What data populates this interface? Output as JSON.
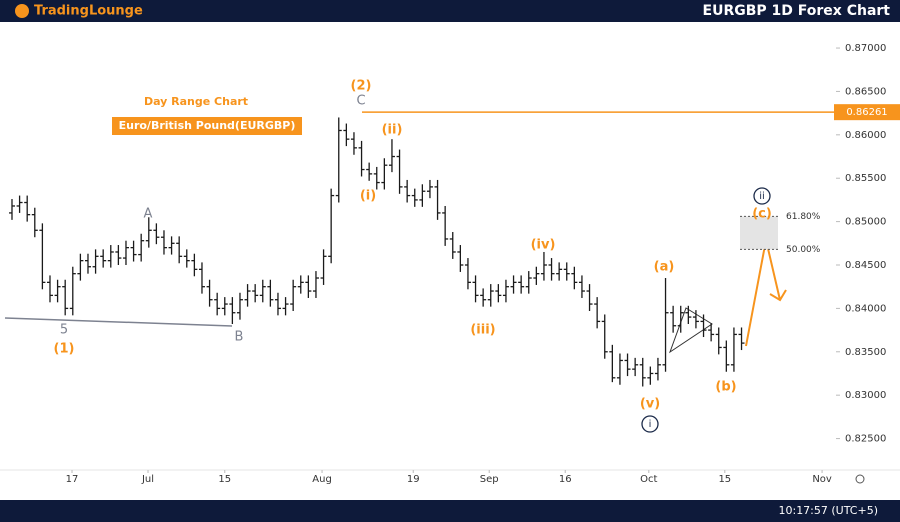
{
  "header": {
    "logo": "TradingLounge",
    "title": "EURGBP 1D Forex Chart"
  },
  "footer": {
    "time": "10:17:57 (UTC+5)"
  },
  "chart_data": {
    "type": "ohlc",
    "subtitle": "Day Range Chart",
    "instrument": "Euro/British Pound(EURGBP)",
    "color": "#1a1a1a",
    "accent": "#f7941d",
    "ylim": [
      0.8223,
      0.873
    ],
    "yticks": [
      {
        "value": 0.825,
        "label": "0.82500"
      },
      {
        "value": 0.83,
        "label": "0.83000"
      },
      {
        "value": 0.835,
        "label": "0.83500"
      },
      {
        "value": 0.84,
        "label": "0.84000"
      },
      {
        "value": 0.845,
        "label": "0.84500"
      },
      {
        "value": 0.85,
        "label": "0.85000"
      },
      {
        "value": 0.855,
        "label": "0.85500"
      },
      {
        "value": 0.86,
        "label": "0.86000"
      },
      {
        "value": 0.865,
        "label": "0.86500"
      },
      {
        "value": 0.87,
        "label": "0.87000"
      }
    ],
    "xlim": [
      -0.92,
      108.3
    ],
    "xticks": [
      {
        "value": 7.9,
        "label": "17"
      },
      {
        "value": 17.9,
        "label": "Jul"
      },
      {
        "value": 28,
        "label": "15"
      },
      {
        "value": 40.8,
        "label": "Aug"
      },
      {
        "value": 52.8,
        "label": "19"
      },
      {
        "value": 62.8,
        "label": "Sep"
      },
      {
        "value": 72.8,
        "label": "16"
      },
      {
        "value": 83.8,
        "label": "Oct"
      },
      {
        "value": 93.8,
        "label": "15"
      },
      {
        "value": 106.6,
        "label": "Nov"
      }
    ],
    "open": [
      0.851,
      0.8518,
      0.8522,
      0.8508,
      0.849,
      0.843,
      0.8415,
      0.8425,
      0.84,
      0.844,
      0.8455,
      0.8448,
      0.846,
      0.8455,
      0.8465,
      0.8458,
      0.847,
      0.8462,
      0.8478,
      0.849,
      0.8482,
      0.847,
      0.8475,
      0.846,
      0.8455,
      0.8445,
      0.8425,
      0.841,
      0.84,
      0.8405,
      0.8395,
      0.841,
      0.842,
      0.8415,
      0.8425,
      0.841,
      0.84,
      0.8405,
      0.8425,
      0.843,
      0.842,
      0.8435,
      0.846,
      0.853,
      0.8605,
      0.8595,
      0.8585,
      0.856,
      0.8555,
      0.8545,
      0.8565,
      0.8575,
      0.854,
      0.853,
      0.8525,
      0.8535,
      0.854,
      0.851,
      0.848,
      0.8465,
      0.845,
      0.843,
      0.8415,
      0.841,
      0.842,
      0.8415,
      0.8425,
      0.843,
      0.8425,
      0.8435,
      0.844,
      0.845,
      0.844,
      0.8445,
      0.844,
      0.843,
      0.842,
      0.8405,
      0.8385,
      0.835,
      0.832,
      0.834,
      0.833,
      0.8335,
      0.832,
      0.8325,
      0.8335,
      0.8395,
      0.838,
      0.8395,
      0.839,
      0.8385,
      0.8375,
      0.837,
      0.8355,
      0.8335,
      0.837
    ],
    "high": [
      0.8526,
      0.853,
      0.853,
      0.8516,
      0.8498,
      0.8438,
      0.8433,
      0.8433,
      0.8448,
      0.8463,
      0.8463,
      0.8468,
      0.8468,
      0.8473,
      0.8473,
      0.8478,
      0.8478,
      0.8486,
      0.8505,
      0.8498,
      0.849,
      0.8483,
      0.8483,
      0.8468,
      0.8463,
      0.8453,
      0.8433,
      0.8418,
      0.8413,
      0.8413,
      0.8418,
      0.8428,
      0.8428,
      0.8433,
      0.8433,
      0.8418,
      0.8413,
      0.8433,
      0.8438,
      0.8438,
      0.8443,
      0.8468,
      0.8538,
      0.862,
      0.8613,
      0.8603,
      0.8593,
      0.8568,
      0.8563,
      0.8573,
      0.8595,
      0.8583,
      0.8548,
      0.8538,
      0.8543,
      0.8548,
      0.8548,
      0.8518,
      0.8488,
      0.8473,
      0.8458,
      0.8438,
      0.8423,
      0.8428,
      0.8428,
      0.8433,
      0.8438,
      0.8438,
      0.8443,
      0.8448,
      0.8465,
      0.8458,
      0.8453,
      0.8453,
      0.8448,
      0.8438,
      0.8428,
      0.8413,
      0.8393,
      0.8358,
      0.8348,
      0.8348,
      0.8343,
      0.8343,
      0.8333,
      0.8343,
      0.8435,
      0.8403,
      0.8403,
      0.8403,
      0.8398,
      0.8393,
      0.8383,
      0.8378,
      0.8363,
      0.8378,
      0.8378
    ],
    "low": [
      0.8502,
      0.851,
      0.85,
      0.8482,
      0.8422,
      0.8407,
      0.8407,
      0.8392,
      0.8392,
      0.8432,
      0.844,
      0.844,
      0.8447,
      0.8447,
      0.845,
      0.845,
      0.8454,
      0.8454,
      0.847,
      0.8474,
      0.8462,
      0.8462,
      0.8452,
      0.8447,
      0.8437,
      0.8417,
      0.8402,
      0.8392,
      0.8392,
      0.8382,
      0.8387,
      0.8402,
      0.8407,
      0.8407,
      0.8402,
      0.8392,
      0.8392,
      0.8397,
      0.8417,
      0.8412,
      0.8412,
      0.8427,
      0.8452,
      0.8522,
      0.8587,
      0.8577,
      0.8552,
      0.8547,
      0.8537,
      0.8537,
      0.8557,
      0.8532,
      0.8522,
      0.8517,
      0.8517,
      0.8527,
      0.8502,
      0.8472,
      0.8457,
      0.8442,
      0.8422,
      0.8407,
      0.8402,
      0.8402,
      0.8407,
      0.8407,
      0.8417,
      0.8417,
      0.8417,
      0.8427,
      0.8432,
      0.8432,
      0.8432,
      0.8432,
      0.8422,
      0.8412,
      0.8397,
      0.8377,
      0.8342,
      0.8315,
      0.8312,
      0.8322,
      0.8322,
      0.831,
      0.8312,
      0.8317,
      0.8327,
      0.8372,
      0.8372,
      0.8382,
      0.8377,
      0.8367,
      0.8362,
      0.8347,
      0.8327,
      0.8327,
      0.8352
    ],
    "close": [
      0.8518,
      0.8522,
      0.8508,
      0.849,
      0.843,
      0.8415,
      0.8425,
      0.84,
      0.844,
      0.8455,
      0.8448,
      0.846,
      0.8455,
      0.8465,
      0.8458,
      0.847,
      0.8462,
      0.8478,
      0.849,
      0.8482,
      0.847,
      0.8475,
      0.846,
      0.8455,
      0.8445,
      0.8425,
      0.841,
      0.84,
      0.8405,
      0.8395,
      0.841,
      0.842,
      0.8415,
      0.8425,
      0.841,
      0.84,
      0.8405,
      0.8425,
      0.843,
      0.842,
      0.8435,
      0.846,
      0.853,
      0.8605,
      0.8595,
      0.8585,
      0.856,
      0.8555,
      0.8545,
      0.8565,
      0.8575,
      0.854,
      0.853,
      0.8525,
      0.8535,
      0.854,
      0.851,
      0.848,
      0.8465,
      0.845,
      0.843,
      0.8415,
      0.841,
      0.842,
      0.8415,
      0.8425,
      0.843,
      0.8425,
      0.8435,
      0.844,
      0.845,
      0.844,
      0.8445,
      0.844,
      0.843,
      0.842,
      0.8405,
      0.8385,
      0.835,
      0.832,
      0.834,
      0.833,
      0.8335,
      0.832,
      0.8325,
      0.8335,
      0.8395,
      0.838,
      0.8395,
      0.839,
      0.8385,
      0.8375,
      0.837,
      0.8355,
      0.8335,
      0.837,
      0.836
    ],
    "price_level": {
      "value": 0.86261,
      "label": "0.86261"
    },
    "fib_levels": [
      {
        "price": 0.8506,
        "label": "61.80%"
      },
      {
        "price": 0.8468,
        "label": "50.00%"
      }
    ],
    "annotations": [
      {
        "text": "5",
        "color": "#7d8290"
      },
      {
        "text": "(1)",
        "color": "#f7941d"
      },
      {
        "text": "A",
        "color": "#7d8290"
      },
      {
        "text": "B",
        "color": "#7d8290"
      },
      {
        "text": "(2)",
        "color": "#f7941d"
      },
      {
        "text": "C",
        "color": "#7d8290"
      },
      {
        "text": "(i)",
        "color": "#f7941d"
      },
      {
        "text": "(ii)",
        "color": "#f7941d"
      },
      {
        "text": "(iii)",
        "color": "#f7941d"
      },
      {
        "text": "(iv)",
        "color": "#f7941d"
      },
      {
        "text": "(v)",
        "color": "#f7941d"
      },
      {
        "text": "i",
        "color": "#1c2b4a",
        "circled": true
      },
      {
        "text": "(a)",
        "color": "#f7941d"
      },
      {
        "text": "(b)",
        "color": "#f7941d"
      },
      {
        "text": "(c)",
        "color": "#f7941d"
      },
      {
        "text": "ii",
        "color": "#1c2b4a",
        "circled": true
      }
    ]
  }
}
